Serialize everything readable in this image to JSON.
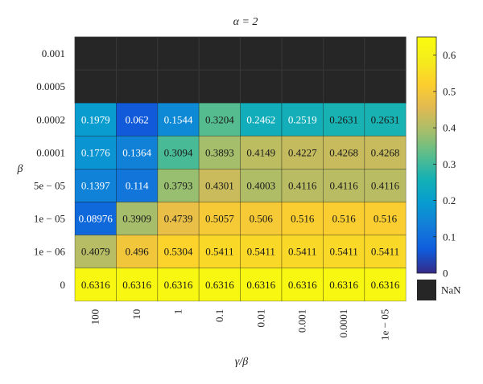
{
  "chart_data": {
    "type": "heatmap",
    "title": "α = 2",
    "xlabel": "γ/β",
    "ylabel": "β",
    "x_categories": [
      "100",
      "10",
      "1",
      "0.1",
      "0.01",
      "0.001",
      "0.0001",
      "1e − 05"
    ],
    "y_categories": [
      "0.001",
      "0.0005",
      "0.0002",
      "0.0001",
      "5e − 05",
      "1e − 05",
      "1e − 06",
      "0"
    ],
    "values": [
      [
        null,
        null,
        null,
        null,
        null,
        null,
        null,
        null
      ],
      [
        null,
        null,
        null,
        null,
        null,
        null,
        null,
        null
      ],
      [
        0.1979,
        0.062,
        0.1544,
        0.3204,
        0.2462,
        0.2519,
        0.2631,
        0.2631
      ],
      [
        0.1776,
        0.1364,
        0.3094,
        0.3893,
        0.4149,
        0.4227,
        0.4268,
        0.4268
      ],
      [
        0.1397,
        0.114,
        0.3793,
        0.4301,
        0.4003,
        0.4116,
        0.4116,
        0.4116
      ],
      [
        0.08976,
        0.3909,
        0.4739,
        0.5057,
        0.506,
        0.516,
        0.516,
        0.516
      ],
      [
        0.4079,
        0.496,
        0.5304,
        0.5411,
        0.5411,
        0.5411,
        0.5411,
        0.5411
      ],
      [
        0.6316,
        0.6316,
        0.6316,
        0.6316,
        0.6316,
        0.6316,
        0.6316,
        0.6316
      ]
    ],
    "value_labels": [
      [
        "",
        "",
        "",
        "",
        "",
        "",
        "",
        ""
      ],
      [
        "",
        "",
        "",
        "",
        "",
        "",
        "",
        ""
      ],
      [
        "0.1979",
        "0.062",
        "0.1544",
        "0.3204",
        "0.2462",
        "0.2519",
        "0.2631",
        "0.2631"
      ],
      [
        "0.1776",
        "0.1364",
        "0.3094",
        "0.3893",
        "0.4149",
        "0.4227",
        "0.4268",
        "0.4268"
      ],
      [
        "0.1397",
        "0.114",
        "0.3793",
        "0.4301",
        "0.4003",
        "0.4116",
        "0.4116",
        "0.4116"
      ],
      [
        "0.08976",
        "0.3909",
        "0.4739",
        "0.5057",
        "0.506",
        "0.516",
        "0.516",
        "0.516"
      ],
      [
        "0.4079",
        "0.496",
        "0.5304",
        "0.5411",
        "0.5411",
        "0.5411",
        "0.5411",
        "0.5411"
      ],
      [
        "0.6316",
        "0.6316",
        "0.6316",
        "0.6316",
        "0.6316",
        "0.6316",
        "0.6316",
        "0.6316"
      ]
    ],
    "colorbar": {
      "range": [
        0,
        0.65
      ],
      "ticks": [
        0,
        0.1,
        0.2,
        0.3,
        0.4,
        0.5,
        0.6
      ],
      "tick_labels": [
        "0",
        "0.1",
        "0.2",
        "0.3",
        "0.4",
        "0.5",
        "0.6"
      ],
      "colormap": "parula",
      "nan_label": "NaN",
      "nan_color": "#262626"
    },
    "grid": true
  }
}
